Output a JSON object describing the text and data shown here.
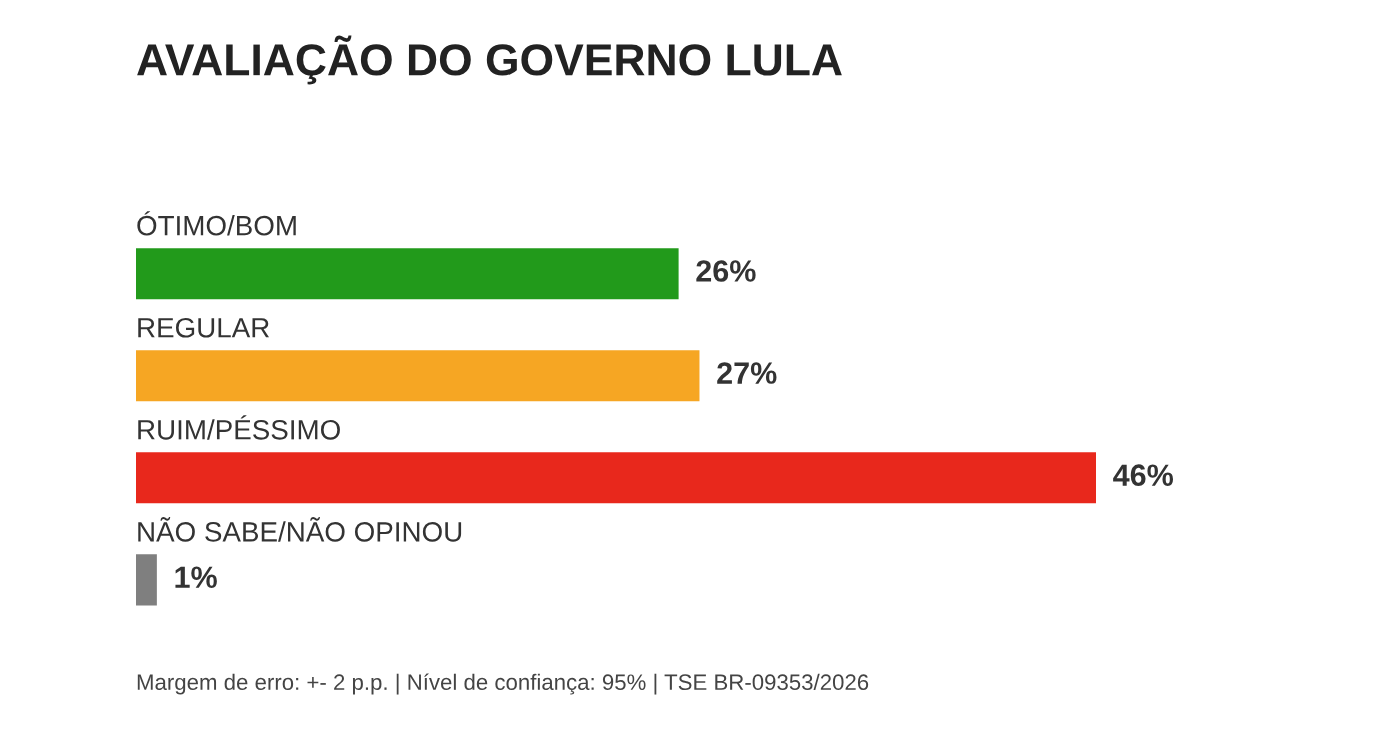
{
  "chart_data": {
    "type": "bar",
    "orientation": "horizontal",
    "title": "AVALIAÇÃO DO GOVERNO LULA",
    "categories": [
      "ÓTIMO/BOM",
      "REGULAR",
      "RUIM/PÉSSIMO",
      "NÃO SABE/NÃO OPINOU"
    ],
    "values": [
      26,
      27,
      46,
      1
    ],
    "colors": [
      "#229a1b",
      "#f6a623",
      "#e8281c",
      "#7f7f7f"
    ],
    "value_labels": [
      "26%",
      "27%",
      "46%",
      "1%"
    ],
    "annotations": [
      "Margem de erro: +- 2 p.p. | Nível de confiança: 95% | TSE BR-09353/2026"
    ]
  }
}
